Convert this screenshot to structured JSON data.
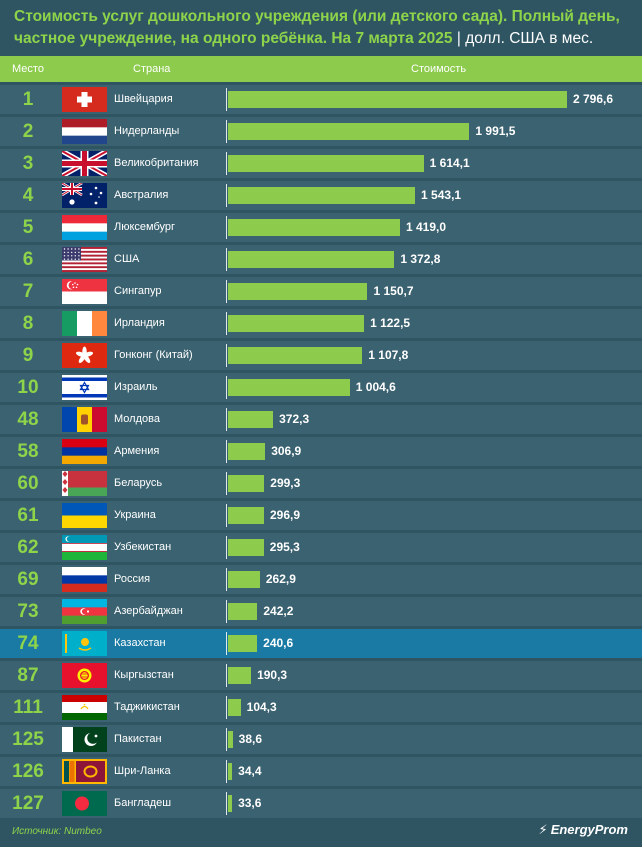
{
  "header": {
    "title_main": "Стоимость услуг дошкольного учреждения (или детского сада). Полный день, частное учреждение, на одного ребёнка. На 7 марта 2025",
    "title_sep": " | ",
    "title_units": "долл. США в мес.",
    "col_rank": "Место",
    "col_country": "Страна",
    "col_value": "Стоимость"
  },
  "source": "Источник: Numbeo",
  "brand": "EnergyProm",
  "highlight_color": "#1a7aa3",
  "bar_color": "#8ccb4b",
  "chart_data": {
    "type": "bar",
    "orientation": "horizontal",
    "xlim": [
      0,
      2796.6
    ],
    "highlight": "Казахстан",
    "rows": [
      {
        "rank": "1",
        "country": "Швейцария",
        "flag": "switzerland-flag",
        "value": 2796.6,
        "label": "2 796,6"
      },
      {
        "rank": "2",
        "country": "Нидерланды",
        "flag": "netherlands-flag",
        "value": 1991.5,
        "label": "1 991,5"
      },
      {
        "rank": "3",
        "country": "Великобритания",
        "flag": "uk-flag",
        "value": 1614.1,
        "label": "1 614,1"
      },
      {
        "rank": "4",
        "country": "Австралия",
        "flag": "australia-flag",
        "value": 1543.1,
        "label": "1 543,1"
      },
      {
        "rank": "5",
        "country": "Люксембург",
        "flag": "luxembourg-flag",
        "value": 1419.0,
        "label": "1 419,0"
      },
      {
        "rank": "6",
        "country": "США",
        "flag": "usa-flag",
        "value": 1372.8,
        "label": "1 372,8"
      },
      {
        "rank": "7",
        "country": "Сингапур",
        "flag": "singapore-flag",
        "value": 1150.7,
        "label": "1 150,7"
      },
      {
        "rank": "8",
        "country": "Ирландия",
        "flag": "ireland-flag",
        "value": 1122.5,
        "label": "1 122,5"
      },
      {
        "rank": "9",
        "country": "Гонконг (Китай)",
        "flag": "hong-kong-flag",
        "value": 1107.8,
        "label": "1 107,8"
      },
      {
        "rank": "10",
        "country": "Израиль",
        "flag": "israel-flag",
        "value": 1004.6,
        "label": "1 004,6"
      },
      {
        "rank": "48",
        "country": "Молдова",
        "flag": "moldova-flag",
        "value": 372.3,
        "label": "372,3"
      },
      {
        "rank": "58",
        "country": "Армения",
        "flag": "armenia-flag",
        "value": 306.9,
        "label": "306,9"
      },
      {
        "rank": "60",
        "country": "Беларусь",
        "flag": "belarus-flag",
        "value": 299.3,
        "label": "299,3"
      },
      {
        "rank": "61",
        "country": "Украина",
        "flag": "ukraine-flag",
        "value": 296.9,
        "label": "296,9"
      },
      {
        "rank": "62",
        "country": "Узбекистан",
        "flag": "uzbekistan-flag",
        "value": 295.3,
        "label": "295,3"
      },
      {
        "rank": "69",
        "country": "Россия",
        "flag": "russia-flag",
        "value": 262.9,
        "label": "262,9"
      },
      {
        "rank": "73",
        "country": "Азербайджан",
        "flag": "azerbaijan-flag",
        "value": 242.2,
        "label": "242,2"
      },
      {
        "rank": "74",
        "country": "Казахстан",
        "flag": "kazakhstan-flag",
        "value": 240.6,
        "label": "240,6"
      },
      {
        "rank": "87",
        "country": "Кыргызстан",
        "flag": "kyrgyzstan-flag",
        "value": 190.3,
        "label": "190,3"
      },
      {
        "rank": "111",
        "country": "Таджикистан",
        "flag": "tajikistan-flag",
        "value": 104.3,
        "label": "104,3"
      },
      {
        "rank": "125",
        "country": "Пакистан",
        "flag": "pakistan-flag",
        "value": 38.6,
        "label": "38,6"
      },
      {
        "rank": "126",
        "country": "Шри-Ланка",
        "flag": "sri-lanka-flag",
        "value": 34.4,
        "label": "34,4"
      },
      {
        "rank": "127",
        "country": "Бангладеш",
        "flag": "bangladesh-flag",
        "value": 33.6,
        "label": "33,6"
      }
    ]
  }
}
